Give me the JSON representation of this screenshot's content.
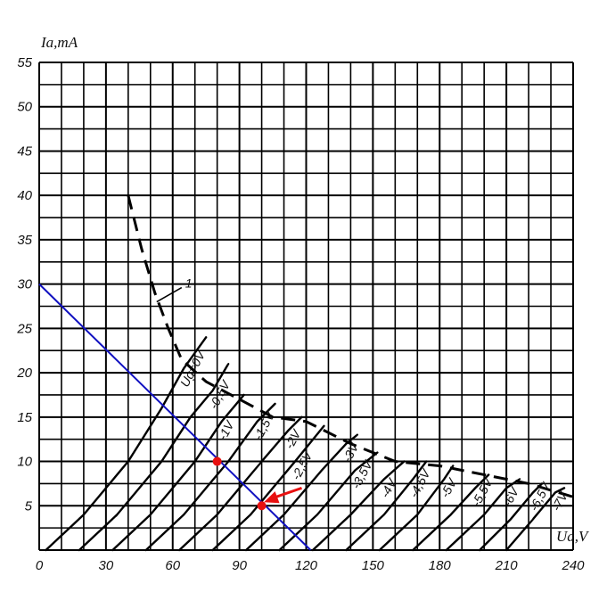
{
  "chart_data": {
    "type": "line",
    "x_axis": {
      "label": "Ua,V",
      "range": [
        0,
        240
      ],
      "ticks": [
        0,
        30,
        60,
        90,
        120,
        150,
        180,
        210,
        240
      ]
    },
    "y_axis": {
      "label": "Ia,mA",
      "range": [
        0,
        55
      ],
      "ticks": [
        5,
        10,
        15,
        20,
        25,
        30,
        35,
        40,
        45,
        50,
        55
      ]
    },
    "grid": true,
    "series": [
      {
        "name": "Ug=0V",
        "points": [
          [
            3,
            0
          ],
          [
            20,
            4
          ],
          [
            40,
            10
          ],
          [
            55,
            16
          ],
          [
            65,
            20.5
          ],
          [
            75,
            24
          ]
        ]
      },
      {
        "name": "-0,5V",
        "points": [
          [
            18,
            0
          ],
          [
            35,
            4
          ],
          [
            55,
            10
          ],
          [
            68,
            15
          ],
          [
            78,
            18
          ],
          [
            85,
            21
          ]
        ]
      },
      {
        "name": "-1V",
        "points": [
          [
            33,
            0
          ],
          [
            50,
            4
          ],
          [
            70,
            10
          ],
          [
            82,
            14.5
          ],
          [
            92,
            17.5
          ]
        ]
      },
      {
        "name": "-1,5V",
        "points": [
          [
            48,
            0
          ],
          [
            65,
            4
          ],
          [
            85,
            10
          ],
          [
            98,
            14.5
          ],
          [
            106,
            16.5
          ]
        ]
      },
      {
        "name": "-2V",
        "points": [
          [
            63,
            0
          ],
          [
            80,
            4
          ],
          [
            100,
            10
          ],
          [
            112,
            13.5
          ],
          [
            118,
            15
          ]
        ]
      },
      {
        "name": "-2,5V",
        "points": [
          [
            78,
            0
          ],
          [
            95,
            4
          ],
          [
            115,
            10
          ],
          [
            128,
            14
          ]
        ]
      },
      {
        "name": "-3V",
        "points": [
          [
            93,
            0
          ],
          [
            110,
            4
          ],
          [
            127,
            9
          ],
          [
            138,
            12
          ],
          [
            143,
            13
          ]
        ]
      },
      {
        "name": "-3,5V",
        "points": [
          [
            108,
            0
          ],
          [
            125,
            4
          ],
          [
            142,
            9
          ],
          [
            152,
            11
          ]
        ]
      },
      {
        "name": "-4V",
        "points": [
          [
            123,
            0
          ],
          [
            140,
            4
          ],
          [
            155,
            8
          ],
          [
            164,
            10
          ]
        ]
      },
      {
        "name": "-4,5V",
        "points": [
          [
            138,
            0
          ],
          [
            155,
            4
          ],
          [
            168,
            8
          ],
          [
            174,
            10
          ]
        ]
      },
      {
        "name": "-5V",
        "points": [
          [
            153,
            0
          ],
          [
            170,
            4
          ],
          [
            182,
            8
          ],
          [
            186,
            9.5
          ]
        ]
      },
      {
        "name": "-5,5V",
        "points": [
          [
            168,
            0
          ],
          [
            185,
            4
          ],
          [
            196,
            7
          ],
          [
            202,
            8.5
          ]
        ]
      },
      {
        "name": "-6V",
        "points": [
          [
            183,
            0
          ],
          [
            200,
            4
          ],
          [
            210,
            7
          ],
          [
            216,
            8
          ]
        ]
      },
      {
        "name": "-6,5V",
        "points": [
          [
            198,
            0
          ],
          [
            212,
            3.5
          ],
          [
            222,
            6.5
          ],
          [
            226,
            7.5
          ]
        ]
      },
      {
        "name": "-7V",
        "points": [
          [
            210,
            0
          ],
          [
            222,
            3.5
          ],
          [
            232,
            6.5
          ],
          [
            236,
            7
          ]
        ]
      }
    ],
    "boundary": {
      "name": "1",
      "style": "dashed",
      "points": [
        [
          40,
          40
        ],
        [
          46,
          34
        ],
        [
          52,
          29
        ],
        [
          58,
          25
        ],
        [
          64,
          21.5
        ],
        [
          75,
          19
        ],
        [
          90,
          17
        ],
        [
          105,
          15
        ],
        [
          120,
          14.5
        ],
        [
          140,
          12
        ],
        [
          160,
          10
        ],
        [
          180,
          9.5
        ],
        [
          200,
          8.5
        ],
        [
          220,
          7.5
        ],
        [
          240,
          6
        ]
      ]
    },
    "load_line": {
      "color": "#1010c0",
      "points": [
        [
          0,
          30
        ],
        [
          122,
          0
        ]
      ]
    },
    "points_marked": [
      {
        "x": 80,
        "y": 10,
        "color": "#e81010"
      },
      {
        "x": 100,
        "y": 5,
        "color": "#e81010"
      }
    ],
    "arrow": {
      "color": "#e81010",
      "from": [
        118,
        7
      ],
      "to": [
        101,
        5.4
      ]
    }
  }
}
